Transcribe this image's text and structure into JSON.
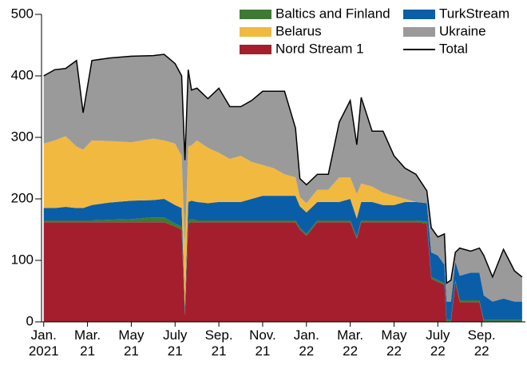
{
  "chart_data": {
    "type": "stacked_area",
    "x": [
      0,
      0.5,
      1,
      1.5,
      1.8,
      2.2,
      3,
      4,
      5,
      5.5,
      6,
      6.3,
      6.45,
      6.6,
      6.75,
      7,
      7.5,
      8,
      8.5,
      9,
      9.5,
      10,
      10.5,
      11,
      11.5,
      11.7,
      12,
      12.5,
      13,
      13.5,
      14,
      14.3,
      14.5,
      15,
      15.5,
      16,
      16.5,
      17,
      17.5,
      17.7,
      18,
      18.3,
      18.4,
      18.6,
      18.8,
      19,
      19.5,
      19.9,
      20.1,
      20.5,
      21,
      21.5,
      21.85
    ],
    "series": [
      {
        "name": "Nord Stream 1",
        "color": "#a51e2d",
        "values": [
          162,
          162,
          162,
          162,
          162,
          162,
          162,
          162,
          162,
          162,
          155,
          150,
          10,
          160,
          162,
          162,
          162,
          162,
          162,
          162,
          162,
          162,
          162,
          162,
          162,
          150,
          140,
          162,
          162,
          162,
          162,
          135,
          162,
          162,
          162,
          162,
          162,
          162,
          160,
          70,
          65,
          60,
          0,
          0,
          65,
          32,
          32,
          32,
          0,
          0,
          0,
          0,
          0
        ]
      },
      {
        "name": "Baltics and Finland",
        "color": "#3f7a34",
        "values": [
          3,
          3,
          3,
          3,
          3,
          3,
          4,
          5,
          8,
          8,
          5,
          5,
          3,
          5,
          5,
          3,
          3,
          3,
          3,
          3,
          3,
          3,
          3,
          3,
          3,
          3,
          3,
          3,
          3,
          3,
          3,
          3,
          3,
          3,
          3,
          3,
          3,
          3,
          3,
          3,
          3,
          3,
          3,
          3,
          3,
          3,
          3,
          3,
          3,
          3,
          3,
          3,
          3
        ]
      },
      {
        "name": "TurkStream",
        "color": "#0a5ea8",
        "values": [
          20,
          20,
          22,
          20,
          20,
          25,
          28,
          30,
          28,
          30,
          30,
          30,
          10,
          30,
          30,
          30,
          28,
          30,
          30,
          30,
          35,
          40,
          40,
          40,
          40,
          35,
          35,
          30,
          30,
          30,
          35,
          30,
          30,
          30,
          25,
          25,
          30,
          30,
          30,
          40,
          40,
          30,
          30,
          30,
          30,
          40,
          45,
          45,
          40,
          30,
          35,
          30,
          30
        ]
      },
      {
        "name": "Belarus",
        "color": "#f1b940",
        "values": [
          105,
          110,
          115,
          100,
          95,
          105,
          100,
          95,
          100,
          95,
          100,
          85,
          100,
          90,
          90,
          100,
          90,
          80,
          70,
          75,
          60,
          50,
          45,
          35,
          30,
          15,
          15,
          20,
          20,
          40,
          35,
          40,
          30,
          25,
          20,
          15,
          5,
          0,
          0,
          0,
          0,
          0,
          0,
          0,
          0,
          0,
          0,
          0,
          0,
          0,
          0,
          0,
          0
        ]
      },
      {
        "name": "Ukraine",
        "color": "#9a9a9a",
        "values": [
          110,
          115,
          110,
          140,
          60,
          130,
          135,
          140,
          135,
          140,
          130,
          130,
          140,
          125,
          90,
          85,
          80,
          105,
          85,
          80,
          100,
          120,
          125,
          135,
          80,
          30,
          30,
          25,
          25,
          90,
          125,
          80,
          140,
          90,
          100,
          65,
          50,
          45,
          20,
          40,
          30,
          50,
          30,
          35,
          15,
          45,
          35,
          40,
          65,
          40,
          80,
          50,
          40
        ]
      },
      {
        "name": "Total",
        "color": "#000000",
        "line": true,
        "values": [
          400,
          410,
          412,
          425,
          340,
          425,
          429,
          432,
          433,
          435,
          420,
          400,
          263,
          410,
          377,
          380,
          363,
          380,
          350,
          350,
          360,
          375,
          375,
          375,
          315,
          233,
          223,
          240,
          240,
          325,
          360,
          288,
          365,
          310,
          310,
          270,
          250,
          240,
          213,
          153,
          138,
          143,
          63,
          68,
          113,
          120,
          115,
          120,
          108,
          73,
          118,
          83,
          73
        ]
      }
    ],
    "xlim": [
      -0.1,
      22
    ],
    "xticks": [
      {
        "value": 0,
        "label": "Jan.\n2021"
      },
      {
        "value": 2,
        "label": "Mar.\n21"
      },
      {
        "value": 4,
        "label": "May\n21"
      },
      {
        "value": 6,
        "label": "July\n21"
      },
      {
        "value": 8,
        "label": "Sep.\n21"
      },
      {
        "value": 10,
        "label": "Nov.\n21"
      },
      {
        "value": 12,
        "label": "Jan.\n22"
      },
      {
        "value": 14,
        "label": "Mar.\n22"
      },
      {
        "value": 16,
        "label": "May\n22"
      },
      {
        "value": 18,
        "label": "July\n22"
      },
      {
        "value": 20,
        "label": "Sep.\n22"
      }
    ],
    "ylim": [
      0,
      500
    ],
    "yticks": [
      0,
      100,
      200,
      300,
      400,
      500
    ]
  }
}
